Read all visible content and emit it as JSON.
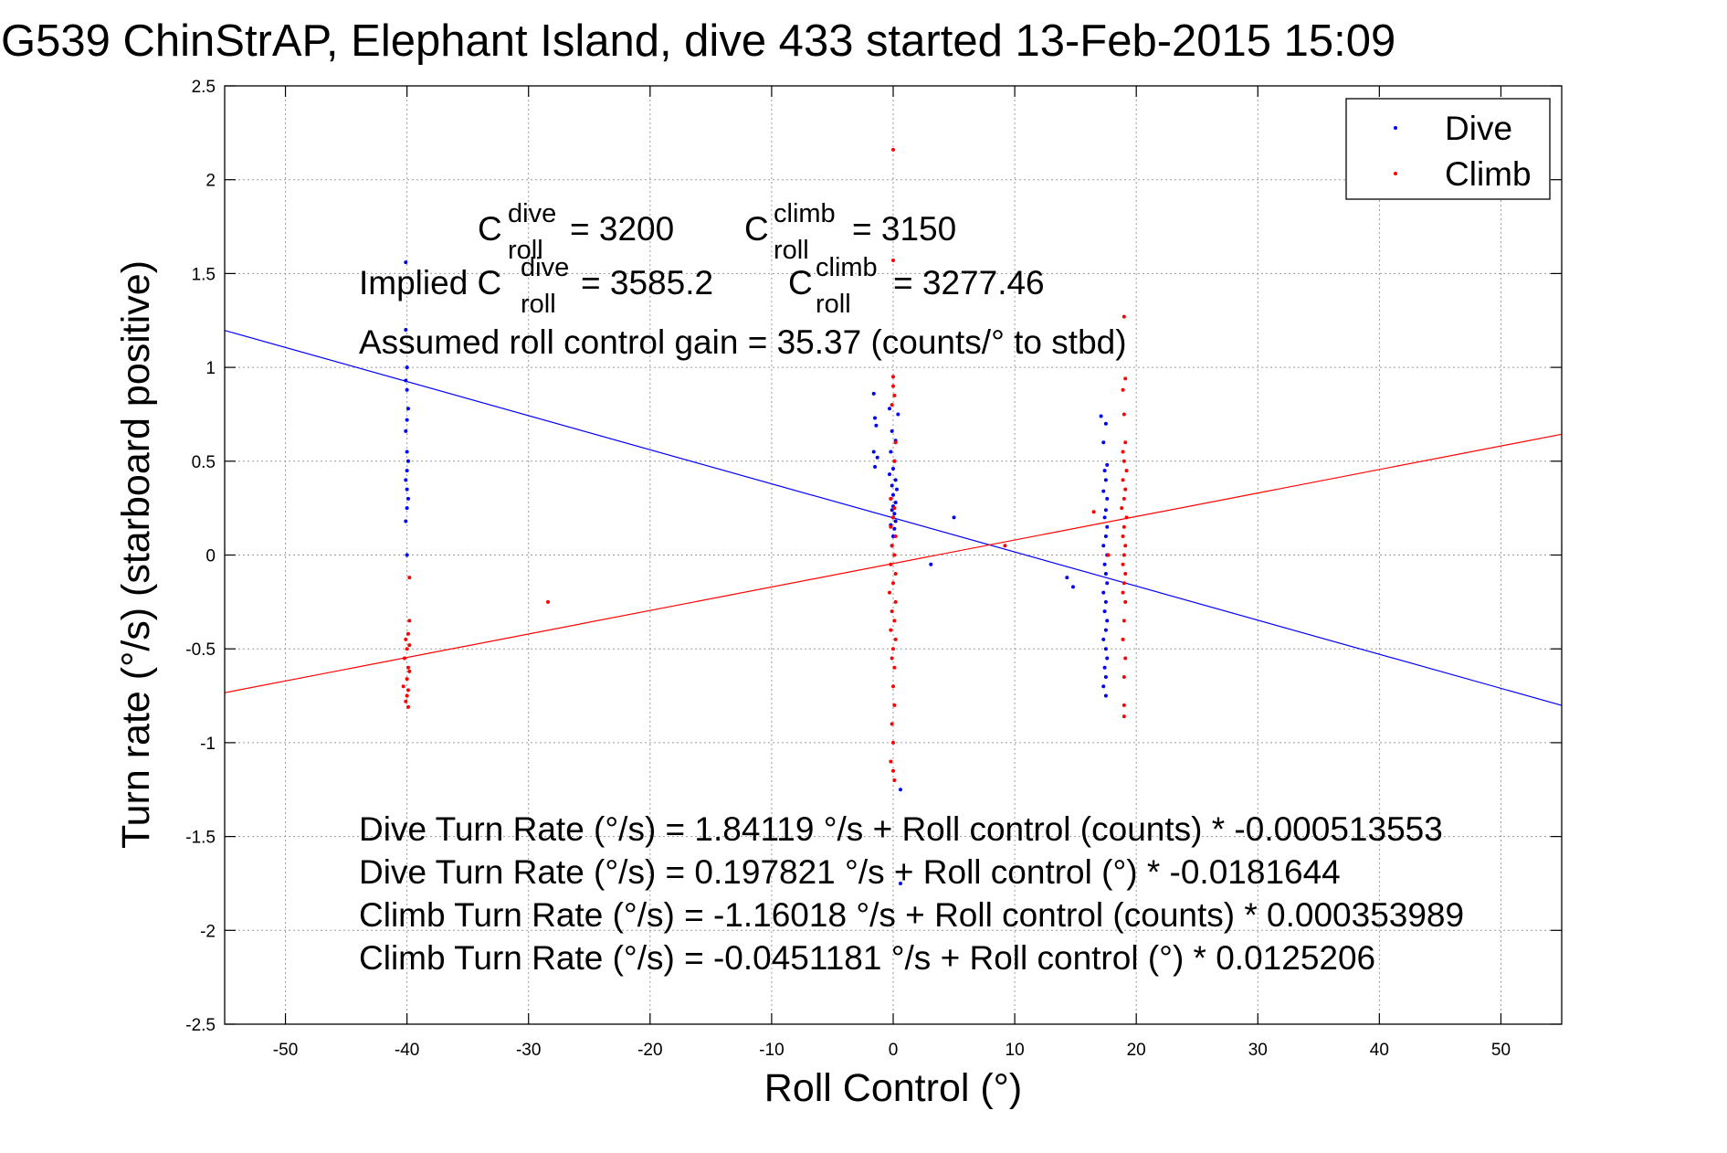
{
  "chart_data": {
    "type": "scatter",
    "title": "G539 ChinStrAP, Elephant Island, dive 433 started 13-Feb-2015 15:09",
    "xlabel": "Roll Control (°)",
    "ylabel": "Turn rate (°/s) (starboard positive)",
    "xlim": [
      -55,
      55
    ],
    "ylim": [
      -2.5,
      2.5
    ],
    "xticks": [
      -50,
      -40,
      -30,
      -20,
      -10,
      0,
      10,
      20,
      30,
      40,
      50
    ],
    "yticks": [
      -2.5,
      -2,
      -1.5,
      -1,
      -0.5,
      0,
      0.5,
      1,
      1.5,
      2,
      2.5
    ],
    "xtick_labels": [
      "-50",
      "-40",
      "-30",
      "-20",
      "-10",
      "0",
      "10",
      "20",
      "30",
      "40",
      "50"
    ],
    "ytick_labels": [
      "-2.5",
      "-2",
      "-1.5",
      "-1",
      "-0.5",
      "0",
      "0.5",
      "1",
      "1.5",
      "2",
      "2.5"
    ],
    "grid": true,
    "legend_position": "top-right",
    "series": [
      {
        "name": "Dive",
        "color": "#0000ff",
        "fit": {
          "intercept": 0.197821,
          "slope": -0.0181644
        },
        "points": [
          [
            -40.1,
            1.56
          ],
          [
            -40.1,
            1.2
          ],
          [
            -40.0,
            1.0
          ],
          [
            -40.1,
            0.93
          ],
          [
            -40.0,
            0.88
          ],
          [
            -39.9,
            0.78
          ],
          [
            -40.0,
            0.72
          ],
          [
            -40.1,
            0.66
          ],
          [
            -40.0,
            0.55
          ],
          [
            -39.9,
            0.5
          ],
          [
            -40.0,
            0.45
          ],
          [
            -40.1,
            0.4
          ],
          [
            -40.0,
            0.35
          ],
          [
            -39.9,
            0.3
          ],
          [
            -40.0,
            0.25
          ],
          [
            -40.1,
            0.18
          ],
          [
            -40.0,
            0.0
          ],
          [
            -1.6,
            0.86
          ],
          [
            -1.5,
            0.73
          ],
          [
            -1.4,
            0.69
          ],
          [
            -1.6,
            0.55
          ],
          [
            -1.3,
            0.52
          ],
          [
            -1.5,
            0.47
          ],
          [
            -0.3,
            0.78
          ],
          [
            0.4,
            0.75
          ],
          [
            -0.1,
            0.66
          ],
          [
            0.2,
            0.61
          ],
          [
            -0.2,
            0.55
          ],
          [
            0.1,
            0.5
          ],
          [
            0.0,
            0.46
          ],
          [
            -0.3,
            0.43
          ],
          [
            0.2,
            0.4
          ],
          [
            -0.1,
            0.37
          ],
          [
            0.3,
            0.35
          ],
          [
            0.0,
            0.32
          ],
          [
            -0.2,
            0.3
          ],
          [
            0.2,
            0.28
          ],
          [
            0.0,
            0.26
          ],
          [
            -0.1,
            0.24
          ],
          [
            0.1,
            0.22
          ],
          [
            0.0,
            0.2
          ],
          [
            0.2,
            0.18
          ],
          [
            -0.2,
            0.16
          ],
          [
            0.1,
            0.14
          ],
          [
            0.0,
            0.1
          ],
          [
            -0.1,
            0.05
          ],
          [
            5.0,
            0.2
          ],
          [
            3.1,
            -0.05
          ],
          [
            0.6,
            -1.25
          ],
          [
            0.6,
            -1.75
          ],
          [
            14.3,
            -0.12
          ],
          [
            14.8,
            -0.17
          ],
          [
            17.1,
            0.74
          ],
          [
            17.5,
            0.7
          ],
          [
            17.3,
            0.6
          ],
          [
            17.6,
            0.48
          ],
          [
            17.4,
            0.45
          ],
          [
            17.5,
            0.4
          ],
          [
            17.3,
            0.34
          ],
          [
            17.6,
            0.3
          ],
          [
            17.5,
            0.24
          ],
          [
            17.4,
            0.2
          ],
          [
            17.6,
            0.15
          ],
          [
            17.5,
            0.1
          ],
          [
            17.3,
            0.05
          ],
          [
            17.6,
            0.0
          ],
          [
            17.4,
            -0.05
          ],
          [
            17.5,
            -0.1
          ],
          [
            17.6,
            -0.15
          ],
          [
            17.3,
            -0.2
          ],
          [
            17.5,
            -0.25
          ],
          [
            17.4,
            -0.3
          ],
          [
            17.6,
            -0.35
          ],
          [
            17.5,
            -0.4
          ],
          [
            17.3,
            -0.45
          ],
          [
            17.5,
            -0.5
          ],
          [
            17.6,
            -0.55
          ],
          [
            17.4,
            -0.6
          ],
          [
            17.5,
            -0.65
          ],
          [
            17.3,
            -0.7
          ],
          [
            17.5,
            -0.75
          ]
        ]
      },
      {
        "name": "Climb",
        "color": "#ff0000",
        "fit": {
          "intercept": -0.0451181,
          "slope": 0.0125206
        },
        "points": [
          [
            -39.8,
            -0.12
          ],
          [
            -39.8,
            -0.35
          ],
          [
            -39.9,
            -0.42
          ],
          [
            -40.1,
            -0.45
          ],
          [
            -39.8,
            -0.48
          ],
          [
            -40.0,
            -0.5
          ],
          [
            -40.2,
            -0.55
          ],
          [
            -39.9,
            -0.6
          ],
          [
            -39.8,
            -0.62
          ],
          [
            -40.0,
            -0.66
          ],
          [
            -40.3,
            -0.7
          ],
          [
            -39.9,
            -0.72
          ],
          [
            -40.0,
            -0.75
          ],
          [
            -40.1,
            -0.78
          ],
          [
            -39.9,
            -0.81
          ],
          [
            -28.4,
            -0.25
          ],
          [
            0.0,
            2.16
          ],
          [
            0.0,
            1.57
          ],
          [
            0.0,
            0.95
          ],
          [
            0.0,
            0.9
          ],
          [
            0.1,
            0.85
          ],
          [
            -0.1,
            0.8
          ],
          [
            0.2,
            0.6
          ],
          [
            0.1,
            0.5
          ],
          [
            -0.2,
            0.3
          ],
          [
            0.1,
            0.25
          ],
          [
            0.0,
            0.2
          ],
          [
            -0.2,
            0.15
          ],
          [
            0.2,
            0.1
          ],
          [
            -0.1,
            0.05
          ],
          [
            0.1,
            0.0
          ],
          [
            -0.2,
            -0.05
          ],
          [
            0.2,
            -0.1
          ],
          [
            0.0,
            -0.15
          ],
          [
            -0.3,
            -0.2
          ],
          [
            0.2,
            -0.25
          ],
          [
            -0.1,
            -0.3
          ],
          [
            0.1,
            -0.35
          ],
          [
            -0.2,
            -0.4
          ],
          [
            0.2,
            -0.45
          ],
          [
            0.0,
            -0.5
          ],
          [
            -0.1,
            -0.55
          ],
          [
            0.1,
            -0.6
          ],
          [
            0.0,
            -0.7
          ],
          [
            0.1,
            -0.8
          ],
          [
            -0.1,
            -0.9
          ],
          [
            0.0,
            -1.0
          ],
          [
            -0.2,
            -1.1
          ],
          [
            0.0,
            -1.15
          ],
          [
            0.1,
            -1.2
          ],
          [
            9.2,
            0.05
          ],
          [
            16.5,
            0.23
          ],
          [
            17.7,
            0.0
          ],
          [
            19.0,
            1.27
          ],
          [
            19.1,
            0.94
          ],
          [
            18.9,
            0.88
          ],
          [
            19.0,
            0.75
          ],
          [
            19.1,
            0.6
          ],
          [
            18.9,
            0.55
          ],
          [
            19.0,
            0.5
          ],
          [
            19.2,
            0.45
          ],
          [
            18.9,
            0.4
          ],
          [
            19.1,
            0.35
          ],
          [
            19.0,
            0.3
          ],
          [
            18.8,
            0.25
          ],
          [
            19.2,
            0.2
          ],
          [
            19.0,
            0.15
          ],
          [
            18.9,
            0.1
          ],
          [
            19.1,
            0.05
          ],
          [
            19.0,
            0.0
          ],
          [
            18.9,
            -0.05
          ],
          [
            19.1,
            -0.1
          ],
          [
            19.0,
            -0.15
          ],
          [
            18.9,
            -0.2
          ],
          [
            19.1,
            -0.25
          ],
          [
            19.0,
            -0.35
          ],
          [
            18.9,
            -0.45
          ],
          [
            19.1,
            -0.55
          ],
          [
            19.0,
            -0.65
          ],
          [
            19.0,
            -0.8
          ],
          [
            19.0,
            -0.86
          ]
        ]
      }
    ]
  },
  "annotations": {
    "c_dive_base": "C",
    "c_dive_sup": "dive",
    "c_dive_sub": "roll",
    "c_dive_value": "= 3200",
    "c_climb_base": "C",
    "c_climb_sup": "climb",
    "c_climb_sub": "roll",
    "c_climb_value": "= 3150",
    "implied_prefix": "Implied C",
    "implied_dive_sup": "dive",
    "implied_dive_sub": "roll",
    "implied_dive_value": "= 3585.2",
    "implied_climb_base": "C",
    "implied_climb_sup": "climb",
    "implied_climb_sub": "roll",
    "implied_climb_value": "= 3277.46",
    "gain": "Assumed roll control gain = 35.37 (counts/° to stbd)",
    "eq1": "Dive Turn Rate (°/s) = 1.84119 °/s + Roll control (counts) * -0.000513553",
    "eq2": "Dive Turn Rate (°/s) = 0.197821 °/s + Roll control (°) * -0.0181644",
    "eq3": "Climb Turn Rate (°/s) = -1.16018 °/s + Roll control (counts) * 0.000353989",
    "eq4": "Climb Turn Rate (°/s) = -0.0451181 °/s + Roll control (°) * 0.0125206"
  }
}
